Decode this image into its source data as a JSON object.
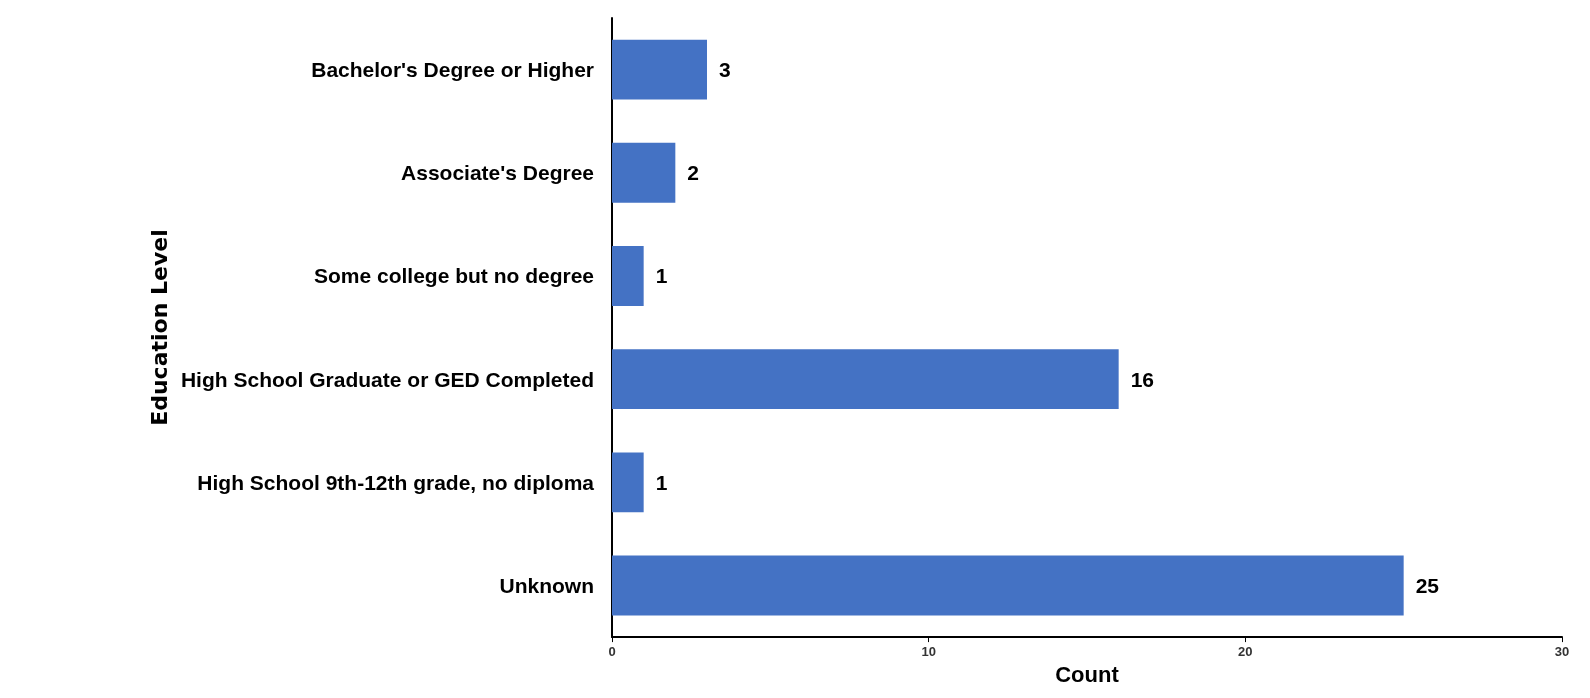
{
  "chart_data": {
    "type": "bar",
    "orientation": "horizontal",
    "xlabel": "Count",
    "ylabel": "Education Level",
    "categories": [
      "Bachelor's Degree or Higher",
      "Associate's Degree",
      "Some college but no degree",
      "High School Graduate or GED Completed",
      "High School 9th-12th grade, no diploma",
      "Unknown"
    ],
    "values": [
      3,
      2,
      1,
      16,
      1,
      25
    ],
    "color": "#4472c4",
    "xlim": [
      0,
      30
    ],
    "xticks": [
      0,
      10,
      20,
      30
    ],
    "grid": false,
    "data_labels": true
  }
}
